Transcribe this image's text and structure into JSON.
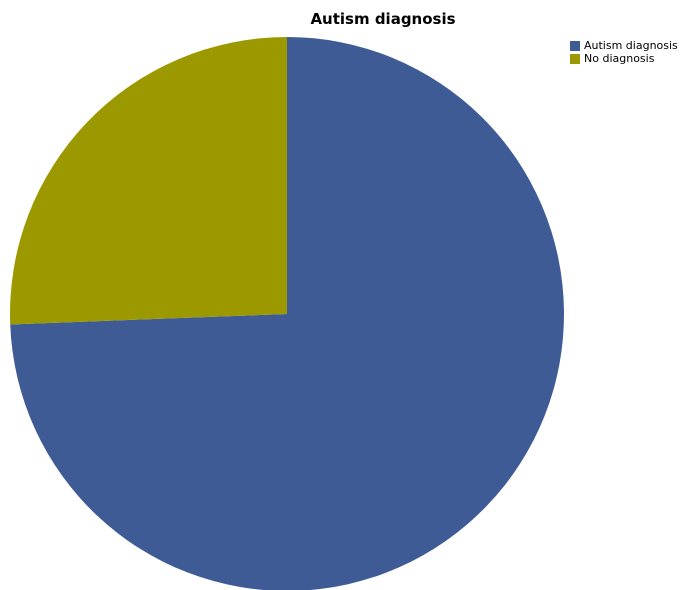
{
  "chart_data": {
    "type": "pie",
    "title": "Autism diagnosis",
    "start_angle_deg": 0,
    "direction": "clockwise",
    "legend_position": "top-right",
    "slices": [
      {
        "label": "Autism diagnosis",
        "value": 74.4,
        "color": "#3f5b96"
      },
      {
        "label": "No diagnosis",
        "value": 25.6,
        "color": "#9c9900"
      }
    ]
  }
}
